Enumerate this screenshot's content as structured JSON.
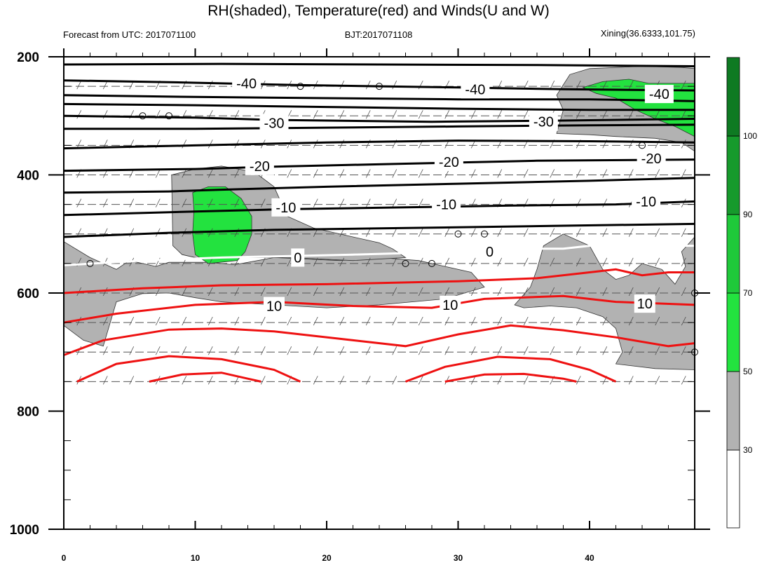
{
  "chart_data": {
    "type": "contour",
    "title": "RH(shaded), Temperature(red) and Winds(U and W)",
    "left_string": "Forecast from UTC: 2017071100",
    "center_string": "BJT:2017071108",
    "right_string": "Xining(36.6333,101.75)",
    "xlabel": "",
    "ylabel": "",
    "x_range": [
      0,
      48
    ],
    "y_range": [
      200,
      1000
    ],
    "y_reversed": true,
    "x_ticks": [
      0,
      10,
      20,
      30,
      40
    ],
    "x_tick_labels": [
      "0",
      "10",
      "20",
      "30",
      "40"
    ],
    "y_ticks": [
      200,
      400,
      600,
      800,
      1000
    ],
    "y_tick_labels": [
      "200",
      "400",
      "600",
      "800",
      "1000"
    ],
    "colorbar": {
      "levels": [
        30,
        50,
        70,
        90,
        100
      ],
      "labels": [
        "30",
        "50",
        "70",
        "90",
        "100"
      ],
      "colors": [
        "#ffffff",
        "#b2b2b2",
        "#23e23f",
        "#1fc93a",
        "#169a2c",
        "#0e7a22"
      ]
    },
    "rh_colors": {
      "gray": "#b2b2b2",
      "green": "#23e23f"
    },
    "line_colors": {
      "temp_negative": "#000000",
      "temp_zero": "#ffffff",
      "temp_positive": "#ee1111"
    },
    "contour_labels": [
      {
        "value": "-40",
        "x": 13.9,
        "y": 245,
        "bg": true
      },
      {
        "value": "-40",
        "x": 31.3,
        "y": 255,
        "bg": true
      },
      {
        "value": "-40",
        "x": 45.3,
        "y": 263,
        "bg": true
      },
      {
        "value": "-30",
        "x": 16.0,
        "y": 312,
        "bg": true
      },
      {
        "value": "-30",
        "x": 36.5,
        "y": 310,
        "bg": true
      },
      {
        "value": "-20",
        "x": 14.9,
        "y": 385,
        "bg": true
      },
      {
        "value": "-20",
        "x": 29.3,
        "y": 378,
        "bg": true
      },
      {
        "value": "-20",
        "x": 44.7,
        "y": 372,
        "bg": true
      },
      {
        "value": "-10",
        "x": 16.9,
        "y": 455,
        "bg": true
      },
      {
        "value": "-10",
        "x": 29.1,
        "y": 450,
        "bg": true
      },
      {
        "value": "-10",
        "x": 44.3,
        "y": 445,
        "bg": true
      },
      {
        "value": "0",
        "x": 17.8,
        "y": 540,
        "bg": true
      },
      {
        "value": "0",
        "x": 32.4,
        "y": 530,
        "bg": false
      },
      {
        "value": "10",
        "x": 16.0,
        "y": 622,
        "bg": true
      },
      {
        "value": "10",
        "x": 29.4,
        "y": 620,
        "bg": true
      },
      {
        "value": "10",
        "x": 44.2,
        "y": 618,
        "bg": true
      }
    ],
    "calm_circles": [
      {
        "x": 6,
        "y": 300
      },
      {
        "x": 8,
        "y": 300
      },
      {
        "x": 18,
        "y": 250
      },
      {
        "x": 24,
        "y": 250
      },
      {
        "x": 30,
        "y": 500
      },
      {
        "x": 32,
        "y": 500
      },
      {
        "x": 2,
        "y": 550
      },
      {
        "x": 26,
        "y": 550
      },
      {
        "x": 28,
        "y": 550
      },
      {
        "x": 44,
        "y": 350
      },
      {
        "x": 48,
        "y": 600
      },
      {
        "x": 48,
        "y": 700
      }
    ]
  }
}
